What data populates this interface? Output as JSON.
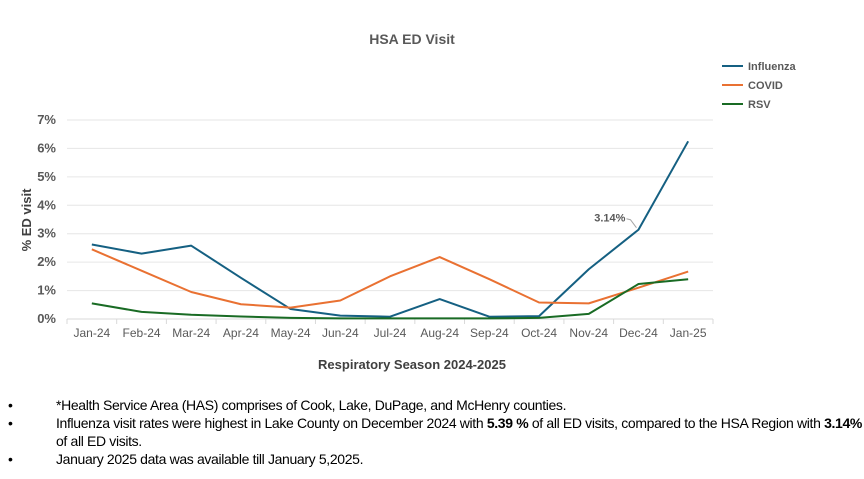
{
  "chart_data": {
    "type": "line",
    "title": "HSA ED Visit",
    "xlabel": "Respiratory Season 2024-2025",
    "ylabel": "% ED visit",
    "ylim": [
      0,
      7
    ],
    "yticks": [
      "0%",
      "1%",
      "2%",
      "3%",
      "4%",
      "5%",
      "6%",
      "7%"
    ],
    "grid": true,
    "legend_position": "top-right",
    "categories": [
      "Jan-24",
      "Feb-24",
      "Mar-24",
      "Apr-24",
      "May-24",
      "Jun-24",
      "Jul-24",
      "Aug-24",
      "Sep-24",
      "Oct-24",
      "Nov-24",
      "Dec-24",
      "Jan-25"
    ],
    "series": [
      {
        "name": "Influenza",
        "color": "#156082",
        "values": [
          2.62,
          2.3,
          2.58,
          1.45,
          0.35,
          0.12,
          0.08,
          0.7,
          0.08,
          0.1,
          1.75,
          3.14,
          6.25
        ]
      },
      {
        "name": "COVID",
        "color": "#E97132",
        "values": [
          2.45,
          1.7,
          0.95,
          0.52,
          0.4,
          0.65,
          1.5,
          2.18,
          1.4,
          0.58,
          0.55,
          1.1,
          1.67
        ]
      },
      {
        "name": "RSV",
        "color": "#196B24",
        "values": [
          0.55,
          0.25,
          0.15,
          0.09,
          0.04,
          0.02,
          0.02,
          0.02,
          0.02,
          0.04,
          0.18,
          1.23,
          1.4
        ]
      }
    ],
    "annotations": [
      {
        "series": "Influenza",
        "category": "Dec-24",
        "text": "3.14%"
      }
    ]
  },
  "notes": [
    {
      "parts": [
        {
          "t": "*Health Service Area (HAS) comprises of Cook, Lake, DuPage, and McHenry counties.",
          "b": false
        }
      ]
    },
    {
      "parts": [
        {
          "t": "Influenza visit rates were highest in Lake County on December 2024 with ",
          "b": false
        },
        {
          "t": "5.39 %",
          "b": true
        },
        {
          "t": " of all ED visits, compared to the HSA Region with ",
          "b": false
        },
        {
          "t": "3.14%",
          "b": true
        },
        {
          "t": " of all ED visits.",
          "b": false
        }
      ]
    },
    {
      "parts": [
        {
          "t": "January 2025 data was available till January 5,2025.",
          "b": false
        }
      ]
    }
  ]
}
